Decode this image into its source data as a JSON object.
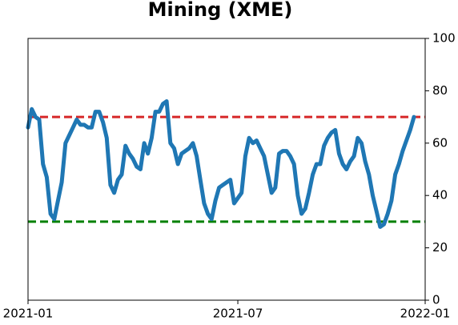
{
  "chart_data": {
    "type": "line",
    "title": "Mining (XME)",
    "categories": [
      "2021-01",
      null,
      null,
      null,
      null,
      null,
      null,
      null,
      null,
      null,
      null,
      null,
      null,
      null,
      null,
      null,
      null,
      null,
      null,
      null,
      null,
      null,
      null,
      null,
      null,
      null,
      null,
      null,
      null,
      null,
      null,
      null,
      null,
      null,
      null,
      null,
      null,
      null,
      null,
      null,
      null,
      null,
      null,
      null,
      null,
      null,
      null,
      null,
      null,
      null,
      null,
      null,
      null,
      null,
      null,
      null,
      "2021-07",
      null,
      null,
      null,
      null,
      null,
      null,
      null,
      null,
      null,
      null,
      null,
      null,
      null,
      null,
      null,
      null,
      null,
      null,
      null,
      null,
      null,
      null,
      null,
      null,
      null,
      null,
      null,
      null,
      null,
      null,
      null,
      null,
      null,
      null,
      null,
      null,
      null,
      null,
      null,
      null,
      null,
      null,
      null,
      null,
      null,
      null,
      null,
      null,
      null,
      "2022-01"
    ],
    "values": [
      66,
      73,
      70,
      69,
      52,
      47,
      33,
      31,
      38,
      45,
      60,
      63,
      66,
      69,
      67,
      67,
      66,
      66,
      72,
      72,
      68,
      62,
      44,
      41,
      46,
      48,
      59,
      56,
      54,
      51,
      50,
      60,
      56,
      62,
      72,
      72,
      75,
      76,
      60,
      58,
      52,
      56,
      57,
      58,
      60,
      55,
      46,
      37,
      33,
      31,
      38,
      43,
      44,
      45,
      46,
      37,
      39,
      41,
      55,
      62,
      60,
      61,
      58,
      55,
      48,
      41,
      43,
      56,
      57,
      57,
      55,
      52,
      40,
      33,
      35,
      41,
      48,
      52,
      52,
      59,
      62,
      64,
      65,
      56,
      52,
      50,
      53,
      55,
      62,
      60,
      53,
      48,
      40,
      34,
      28,
      29,
      33,
      38,
      48,
      52,
      57,
      61,
      65,
      70,
      null,
      null,
      null
    ],
    "color": "#1f77b4",
    "ylim": [
      0,
      100
    ],
    "yticks": [
      0,
      20,
      40,
      60,
      80,
      100
    ],
    "hlines": [
      {
        "value": 70,
        "color": "#d62728"
      },
      {
        "value": 30,
        "color": "#008000"
      }
    ]
  }
}
